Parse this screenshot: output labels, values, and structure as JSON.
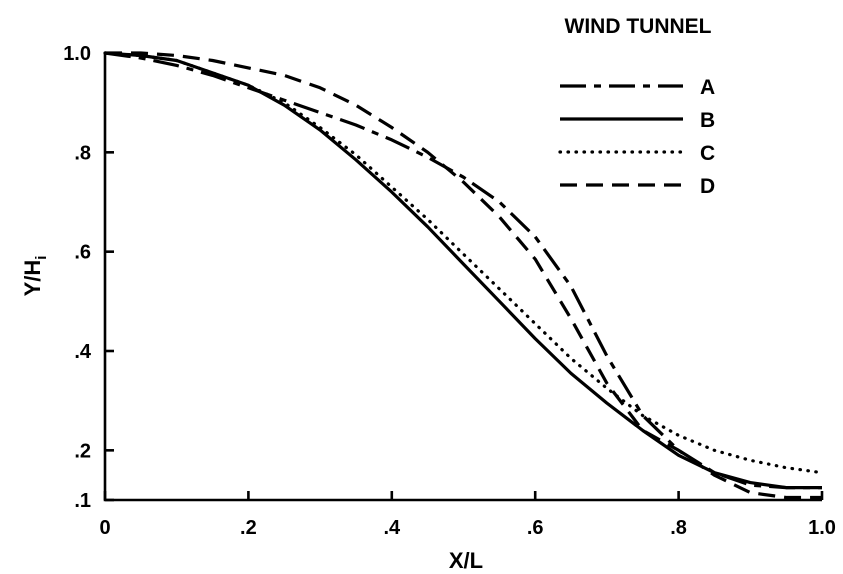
{
  "chart_data": {
    "type": "line",
    "xlabel": "X/L",
    "ylabel": "Y/H",
    "ylabel_subscript": "i",
    "xlim": [
      0,
      1.0
    ],
    "ylim": [
      0.1,
      1.0
    ],
    "x_ticks": [
      0,
      0.2,
      0.4,
      0.6,
      0.8,
      1.0
    ],
    "x_tick_labels": [
      "0",
      ".2",
      ".4",
      ".6",
      ".8",
      "1.0"
    ],
    "y_ticks": [
      0.1,
      0.2,
      0.4,
      0.6,
      0.8,
      1.0
    ],
    "y_tick_labels": [
      ".1",
      ".2",
      ".4",
      ".6",
      ".8",
      "1.0"
    ],
    "grid": false,
    "legend": {
      "title": "WIND TUNNEL",
      "placement": "top-right"
    },
    "series": [
      {
        "name": "A",
        "style": "dash-dot",
        "x": [
          0,
          0.05,
          0.1,
          0.15,
          0.2,
          0.25,
          0.3,
          0.35,
          0.4,
          0.45,
          0.5,
          0.55,
          0.6,
          0.65,
          0.7,
          0.75,
          0.8,
          0.85,
          0.9,
          0.95,
          1.0
        ],
        "y": [
          1.0,
          0.99,
          0.975,
          0.955,
          0.93,
          0.905,
          0.88,
          0.855,
          0.825,
          0.79,
          0.75,
          0.7,
          0.63,
          0.53,
          0.39,
          0.27,
          0.2,
          0.155,
          0.13,
          0.125,
          0.125
        ]
      },
      {
        "name": "B",
        "style": "solid",
        "x": [
          0,
          0.05,
          0.1,
          0.15,
          0.2,
          0.25,
          0.3,
          0.35,
          0.4,
          0.45,
          0.5,
          0.55,
          0.6,
          0.65,
          0.7,
          0.75,
          0.8,
          0.85,
          0.9,
          0.95,
          1.0
        ],
        "y": [
          1.0,
          0.995,
          0.985,
          0.96,
          0.935,
          0.895,
          0.845,
          0.785,
          0.72,
          0.65,
          0.575,
          0.5,
          0.425,
          0.355,
          0.295,
          0.24,
          0.19,
          0.155,
          0.135,
          0.125,
          0.125
        ]
      },
      {
        "name": "C",
        "style": "dotted",
        "x": [
          0,
          0.05,
          0.1,
          0.15,
          0.2,
          0.25,
          0.3,
          0.35,
          0.4,
          0.45,
          0.5,
          0.55,
          0.6,
          0.65,
          0.7,
          0.75,
          0.8,
          0.85,
          0.9,
          0.95,
          1.0
        ],
        "y": [
          1.0,
          0.995,
          0.985,
          0.96,
          0.935,
          0.9,
          0.85,
          0.795,
          0.73,
          0.665,
          0.595,
          0.525,
          0.455,
          0.385,
          0.325,
          0.27,
          0.23,
          0.2,
          0.18,
          0.165,
          0.155
        ]
      },
      {
        "name": "D",
        "style": "dashed",
        "x": [
          0,
          0.05,
          0.1,
          0.15,
          0.2,
          0.25,
          0.3,
          0.35,
          0.4,
          0.45,
          0.5,
          0.55,
          0.6,
          0.65,
          0.7,
          0.75,
          0.8,
          0.85,
          0.9,
          0.95,
          1.0
        ],
        "y": [
          1.0,
          1.0,
          0.995,
          0.985,
          0.97,
          0.955,
          0.93,
          0.895,
          0.85,
          0.8,
          0.74,
          0.67,
          0.585,
          0.465,
          0.335,
          0.24,
          0.2,
          0.15,
          0.115,
          0.105,
          0.105
        ]
      }
    ]
  }
}
